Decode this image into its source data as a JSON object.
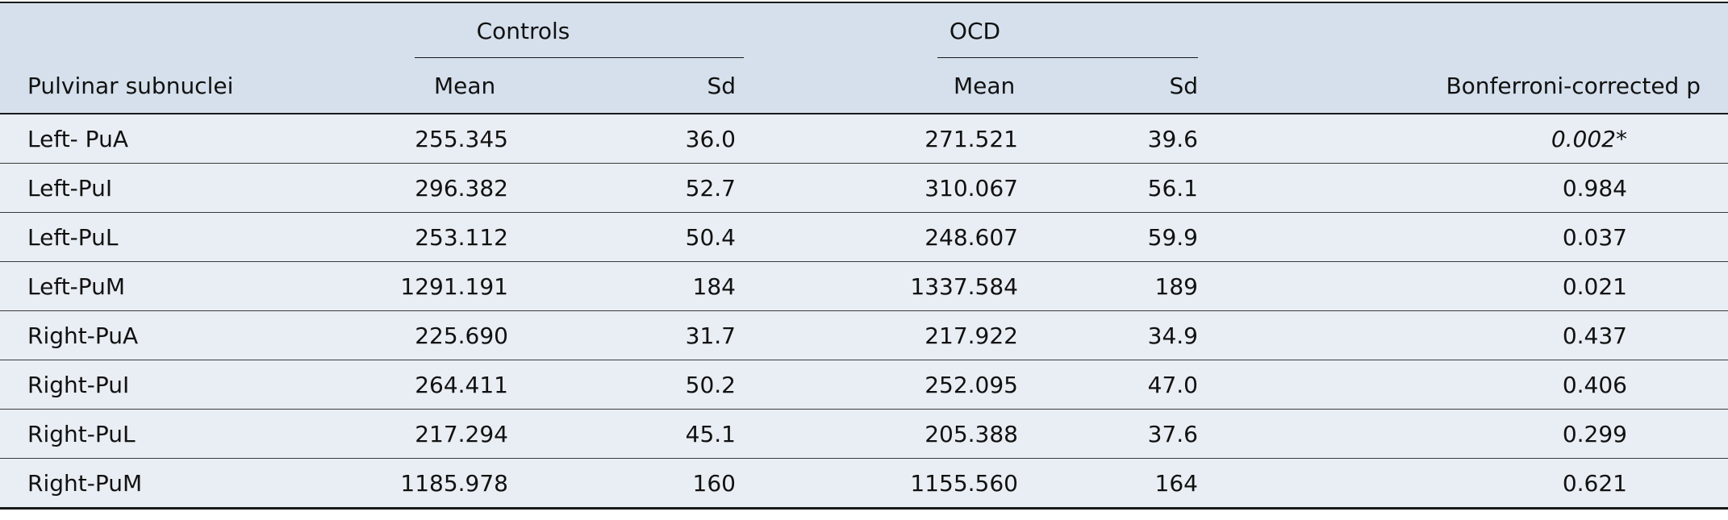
{
  "header": {
    "label_col": "Pulvinar subnuclei",
    "group_controls": "Controls",
    "group_ocd": "OCD",
    "controls_mean": "Mean",
    "controls_sd": "Sd",
    "ocd_mean": "Mean",
    "ocd_sd": "Sd",
    "pvalue": "Bonferroni-corrected p"
  },
  "rows": [
    {
      "label": "Left- PuA",
      "c_mean": "255.345",
      "c_sd": "36.0",
      "o_mean": "271.521",
      "o_sd": "39.6",
      "p": "0.002",
      "p_mark": "*"
    },
    {
      "label": "Left-PuI",
      "c_mean": "296.382",
      "c_sd": "52.7",
      "o_mean": "310.067",
      "o_sd": "56.1",
      "p": "0.984",
      "p_mark": ""
    },
    {
      "label": "Left-PuL",
      "c_mean": "253.112",
      "c_sd": "50.4",
      "o_mean": "248.607",
      "o_sd": "59.9",
      "p": "0.037",
      "p_mark": ""
    },
    {
      "label": "Left-PuM",
      "c_mean": "1291.191",
      "c_sd": "184",
      "o_mean": "1337.584",
      "o_sd": "189",
      "p": "0.021",
      "p_mark": ""
    },
    {
      "label": "Right-PuA",
      "c_mean": "225.690",
      "c_sd": "31.7",
      "o_mean": "217.922",
      "o_sd": "34.9",
      "p": "0.437",
      "p_mark": ""
    },
    {
      "label": "Right-PuI",
      "c_mean": "264.411",
      "c_sd": "50.2",
      "o_mean": "252.095",
      "o_sd": "47.0",
      "p": "0.406",
      "p_mark": ""
    },
    {
      "label": "Right-PuL",
      "c_mean": "217.294",
      "c_sd": "45.1",
      "o_mean": "205.388",
      "o_sd": "37.6",
      "p": "0.299",
      "p_mark": ""
    },
    {
      "label": "Right-PuM",
      "c_mean": "1185.978",
      "c_sd": "160",
      "o_mean": "1155.560",
      "o_sd": "164",
      "p": "0.621",
      "p_mark": ""
    }
  ],
  "colors": {
    "header_bg": "#d5e0ec",
    "body_bg": "#e9eef4",
    "rule": "#1a1a1a"
  }
}
